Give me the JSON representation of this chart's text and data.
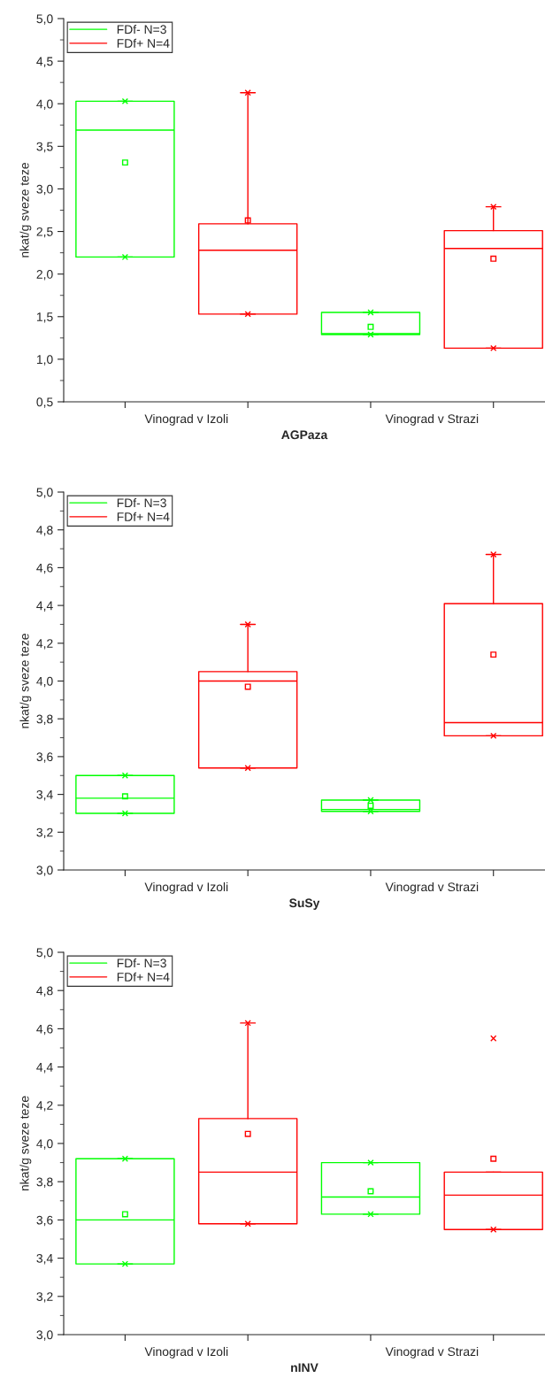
{
  "chart_data": [
    {
      "type": "box",
      "xlabel": "AGPaza",
      "ylabel": "nkat/g sveze teze",
      "categories": [
        "Vinograd v Izoli",
        "Vinograd v Strazi"
      ],
      "legend": "top left",
      "grid": false,
      "ylim": [
        0.5,
        5.0
      ],
      "yticks": [
        {
          "value": 0.5,
          "label": "0,5"
        },
        {
          "value": 1.0,
          "label": "1,0"
        },
        {
          "value": 1.5,
          "label": "1,5"
        },
        {
          "value": 2.0,
          "label": "2,0"
        },
        {
          "value": 2.5,
          "label": "2,5"
        },
        {
          "value": 3.0,
          "label": "3,0"
        },
        {
          "value": 3.5,
          "label": "3,5"
        },
        {
          "value": 4.0,
          "label": "4,0"
        },
        {
          "value": 4.5,
          "label": "4,5"
        },
        {
          "value": 5.0,
          "label": "5,0"
        }
      ],
      "series": [
        {
          "name": "FDf- N=3",
          "color": "#00ff00",
          "boxes": [
            {
              "low": 2.2,
              "q1": 2.2,
              "median": 3.69,
              "q3": 4.03,
              "high": 4.03,
              "mean": 3.31
            },
            {
              "low": 1.29,
              "q1": 1.29,
              "median": 1.3,
              "q3": 1.55,
              "high": 1.55,
              "mean": 1.38
            }
          ]
        },
        {
          "name": "FDf+ N=4",
          "color": "#ff0000",
          "boxes": [
            {
              "low": 1.53,
              "q1": 1.53,
              "median": 2.28,
              "q3": 2.59,
              "high": 4.13,
              "mean": 2.63
            },
            {
              "low": 1.13,
              "q1": 1.13,
              "median": 2.3,
              "q3": 2.51,
              "high": 2.79,
              "mean": 2.18
            }
          ]
        },
        {
          "type": "scatter",
          "color": "#00ff00",
          "marker": "cross",
          "x": [
            "Vinograd v Izoli",
            "Vinograd v Izoli",
            "Vinograd v Strazi",
            "Vinograd v Strazi"
          ],
          "values": [
            2.2,
            4.03,
            1.29,
            1.55
          ]
        },
        {
          "type": "scatter",
          "color": "#ff0000",
          "marker": "cross",
          "x": [
            "Vinograd v Izoli",
            "Vinograd v Izoli",
            "Vinograd v Strazi",
            "Vinograd v Strazi"
          ],
          "values": [
            1.53,
            4.13,
            1.13,
            2.79
          ]
        }
      ]
    },
    {
      "type": "box",
      "xlabel": "SuSy",
      "ylabel": "nkat/g sveze teze",
      "categories": [
        "Vinograd v Izoli",
        "Vinograd v Strazi"
      ],
      "legend": "top left",
      "grid": false,
      "ylim": [
        3.0,
        5.0
      ],
      "yticks": [
        {
          "value": 3.0,
          "label": "3,0"
        },
        {
          "value": 3.2,
          "label": "3,2"
        },
        {
          "value": 3.4,
          "label": "3,4"
        },
        {
          "value": 3.6,
          "label": "3,6"
        },
        {
          "value": 3.8,
          "label": "3,8"
        },
        {
          "value": 4.0,
          "label": "4,0"
        },
        {
          "value": 4.2,
          "label": "4,2"
        },
        {
          "value": 4.4,
          "label": "4,4"
        },
        {
          "value": 4.6,
          "label": "4,6"
        },
        {
          "value": 4.8,
          "label": "4,8"
        },
        {
          "value": 5.0,
          "label": "5,0"
        }
      ],
      "series": [
        {
          "name": "FDf- N=3",
          "color": "#00ff00",
          "boxes": [
            {
              "low": 3.3,
              "q1": 3.3,
              "median": 3.38,
              "q3": 3.5,
              "high": 3.5,
              "mean": 3.39
            },
            {
              "low": 3.31,
              "q1": 3.31,
              "median": 3.32,
              "q3": 3.37,
              "high": 3.37,
              "mean": 3.34
            }
          ]
        },
        {
          "name": "FDf+ N=4",
          "color": "#ff0000",
          "boxes": [
            {
              "low": 3.54,
              "q1": 3.54,
              "median": 4.0,
              "q3": 4.05,
              "high": 4.3,
              "mean": 3.97
            },
            {
              "low": 3.71,
              "q1": 3.71,
              "median": 3.78,
              "q3": 4.41,
              "high": 4.67,
              "mean": 4.14
            }
          ]
        },
        {
          "type": "scatter",
          "color": "#00ff00",
          "marker": "cross",
          "x": [
            "Vinograd v Izoli",
            "Vinograd v Izoli",
            "Vinograd v Strazi",
            "Vinograd v Strazi"
          ],
          "values": [
            3.3,
            3.5,
            3.31,
            3.37
          ]
        },
        {
          "type": "scatter",
          "color": "#ff0000",
          "marker": "cross",
          "x": [
            "Vinograd v Izoli",
            "Vinograd v Izoli",
            "Vinograd v Strazi",
            "Vinograd v Strazi"
          ],
          "values": [
            3.54,
            4.3,
            3.71,
            4.67
          ]
        }
      ]
    },
    {
      "type": "box",
      "xlabel": "nINV",
      "ylabel": "nkat/g sveze teze",
      "categories": [
        "Vinograd v Izoli",
        "Vinograd v Strazi"
      ],
      "legend": "top left",
      "grid": false,
      "ylim": [
        3.0,
        5.0
      ],
      "yticks": [
        {
          "value": 3.0,
          "label": "3,0"
        },
        {
          "value": 3.2,
          "label": "3,2"
        },
        {
          "value": 3.4,
          "label": "3,4"
        },
        {
          "value": 3.6,
          "label": "3,6"
        },
        {
          "value": 3.8,
          "label": "3,8"
        },
        {
          "value": 4.0,
          "label": "4,0"
        },
        {
          "value": 4.2,
          "label": "4,2"
        },
        {
          "value": 4.4,
          "label": "4,4"
        },
        {
          "value": 4.6,
          "label": "4,6"
        },
        {
          "value": 4.8,
          "label": "4,8"
        },
        {
          "value": 5.0,
          "label": "5,0"
        }
      ],
      "series": [
        {
          "name": "FDf- N=3",
          "color": "#00ff00",
          "boxes": [
            {
              "low": 3.37,
              "q1": 3.37,
              "median": 3.6,
              "q3": 3.92,
              "high": 3.92,
              "mean": 3.63
            },
            {
              "low": 3.63,
              "q1": 3.63,
              "median": 3.72,
              "q3": 3.9,
              "high": 3.9,
              "mean": 3.75
            }
          ]
        },
        {
          "name": "FDf+ N=4",
          "color": "#ff0000",
          "boxes": [
            {
              "low": 3.58,
              "q1": 3.58,
              "median": 3.85,
              "q3": 4.13,
              "high": 4.63,
              "mean": 4.05
            },
            {
              "low": 3.55,
              "q1": 3.55,
              "median": 3.73,
              "q3": 3.85,
              "high": 3.85,
              "mean": 3.92
            }
          ]
        },
        {
          "type": "scatter",
          "color": "#00ff00",
          "marker": "cross",
          "x": [
            "Vinograd v Izoli",
            "Vinograd v Izoli",
            "Vinograd v Strazi",
            "Vinograd v Strazi"
          ],
          "values": [
            3.37,
            3.92,
            3.63,
            3.9
          ]
        },
        {
          "type": "scatter",
          "color": "#ff0000",
          "marker": "cross",
          "x": [
            "Vinograd v Izoli",
            "Vinograd v Izoli",
            "Vinograd v Strazi",
            "Vinograd v Strazi"
          ],
          "values": [
            3.58,
            4.63,
            3.55,
            4.55
          ]
        }
      ]
    }
  ]
}
